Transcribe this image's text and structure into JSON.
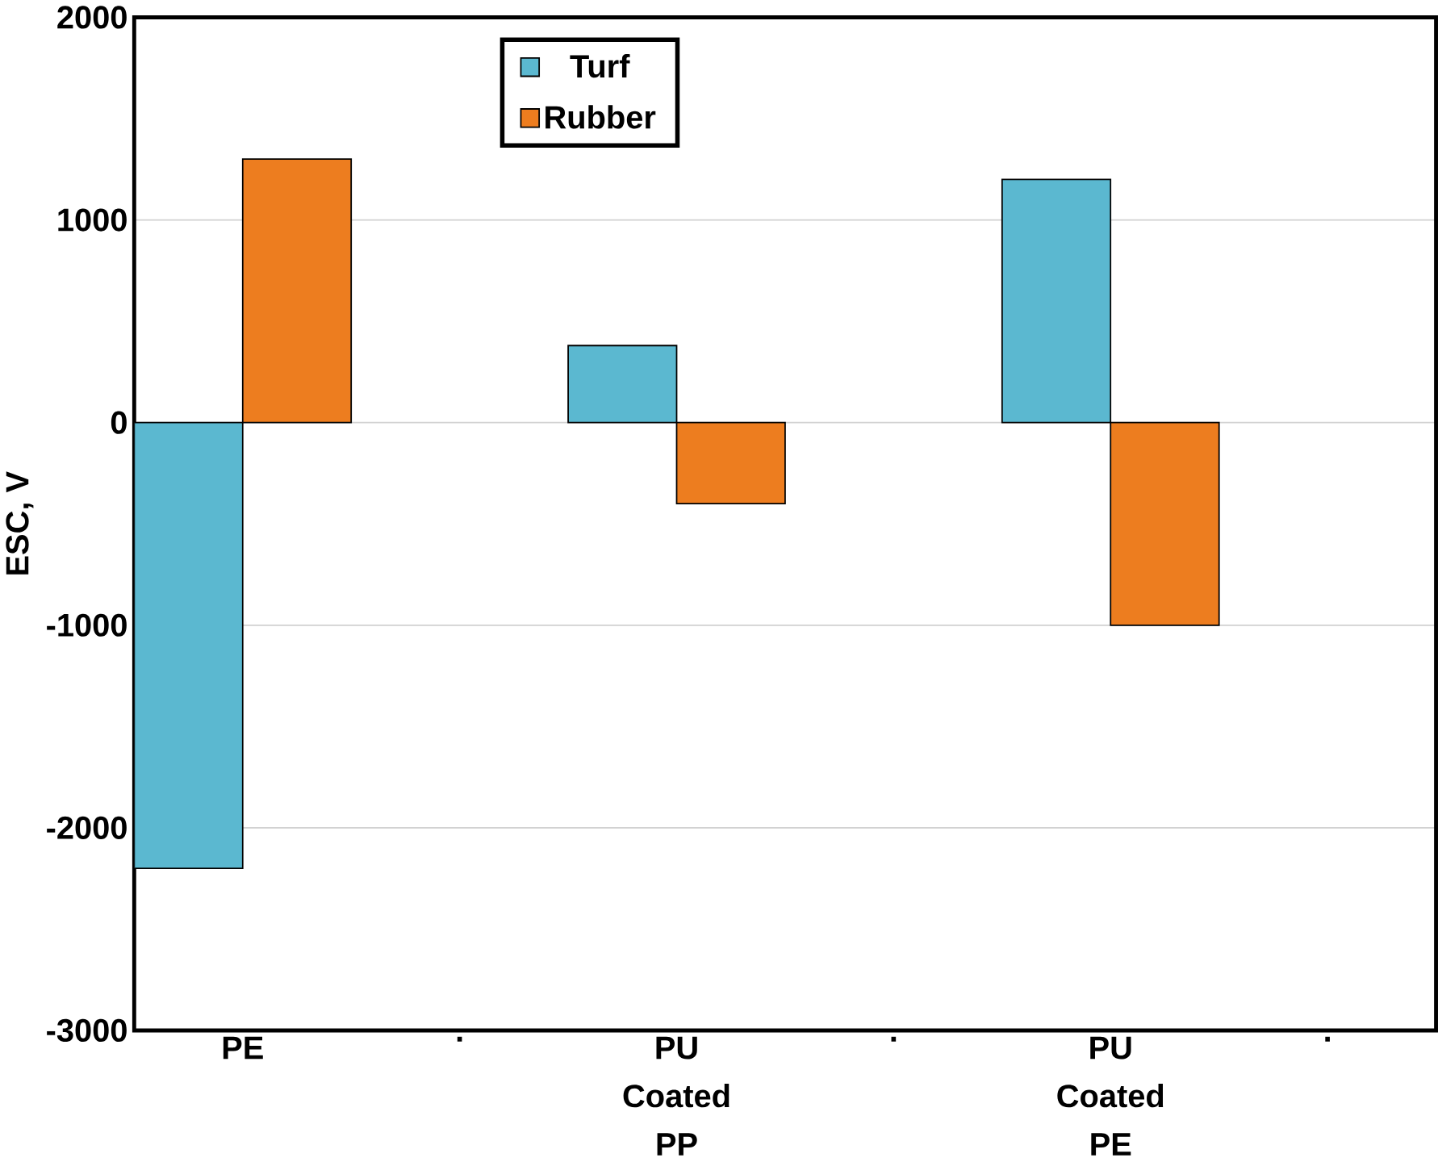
{
  "chart_data": {
    "type": "bar",
    "ylabel": "ESC, V",
    "categories": [
      "PE",
      ".",
      "PU Coated PP",
      ".",
      "PU Coated PE",
      "."
    ],
    "series": [
      {
        "name": "Turf",
        "color": "#5bb8d0",
        "values": [
          -2200,
          null,
          380,
          null,
          1200,
          null
        ]
      },
      {
        "name": "Rubber",
        "color": "#ed7d1f",
        "values": [
          1300,
          null,
          -400,
          null,
          -1000,
          null
        ]
      }
    ],
    "ylim": [
      -3000,
      2000
    ],
    "yticks": [
      -3000,
      -2000,
      -1000,
      0,
      1000,
      2000
    ],
    "grid": "y",
    "legend": "top"
  }
}
